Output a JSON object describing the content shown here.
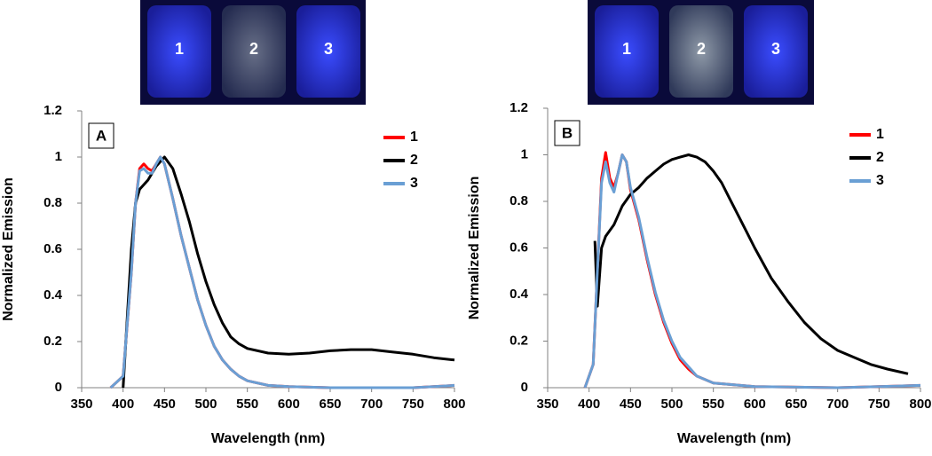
{
  "chart_data": [
    {
      "type": "line",
      "panel_label": "A",
      "inset_labels": [
        "1",
        "2",
        "3"
      ],
      "x_label": "Wavelength (nm)",
      "y_label": "Normalized Emission",
      "xlim": [
        350,
        800
      ],
      "ylim": [
        0,
        1.2
      ],
      "xticks": [
        350,
        400,
        450,
        500,
        550,
        600,
        650,
        700,
        750,
        800
      ],
      "yticks": [
        0,
        0.2,
        0.4,
        0.6,
        0.8,
        1,
        1.2
      ],
      "legend": "upper right",
      "grid": false,
      "series": [
        {
          "name": "1",
          "color": "#ff0000",
          "x": [
            385,
            400,
            410,
            415,
            420,
            425,
            430,
            435,
            440,
            445,
            450,
            460,
            470,
            480,
            490,
            500,
            510,
            520,
            530,
            540,
            550,
            575,
            600,
            650,
            700,
            750,
            800
          ],
          "values": [
            0,
            0.05,
            0.5,
            0.8,
            0.95,
            0.97,
            0.95,
            0.94,
            0.97,
            1.0,
            0.97,
            0.82,
            0.66,
            0.52,
            0.38,
            0.27,
            0.18,
            0.12,
            0.08,
            0.05,
            0.03,
            0.01,
            0.005,
            0,
            0,
            0,
            0.01
          ]
        },
        {
          "name": "2",
          "color": "#000000",
          "x": [
            400,
            405,
            410,
            415,
            420,
            430,
            440,
            450,
            460,
            470,
            480,
            490,
            500,
            510,
            520,
            530,
            540,
            550,
            575,
            600,
            625,
            650,
            675,
            700,
            725,
            750,
            775,
            800
          ],
          "values": [
            0,
            0.3,
            0.6,
            0.8,
            0.86,
            0.9,
            0.96,
            1.0,
            0.95,
            0.84,
            0.72,
            0.58,
            0.46,
            0.36,
            0.28,
            0.22,
            0.19,
            0.17,
            0.15,
            0.145,
            0.15,
            0.16,
            0.165,
            0.165,
            0.155,
            0.145,
            0.13,
            0.12
          ]
        },
        {
          "name": "3",
          "color": "#6a9fd4",
          "x": [
            385,
            400,
            410,
            415,
            420,
            425,
            430,
            435,
            440,
            445,
            450,
            460,
            470,
            480,
            490,
            500,
            510,
            520,
            530,
            540,
            550,
            575,
            600,
            650,
            700,
            750,
            800
          ],
          "values": [
            0,
            0.05,
            0.5,
            0.8,
            0.94,
            0.95,
            0.93,
            0.93,
            0.97,
            1.0,
            0.97,
            0.82,
            0.66,
            0.52,
            0.38,
            0.27,
            0.18,
            0.12,
            0.08,
            0.05,
            0.03,
            0.01,
            0.005,
            0,
            0,
            0,
            0.01
          ]
        }
      ]
    },
    {
      "type": "line",
      "panel_label": "B",
      "inset_labels": [
        "1",
        "2",
        "3"
      ],
      "x_label": "Wavelength (nm)",
      "y_label": "Normalized Emission",
      "xlim": [
        350,
        800
      ],
      "ylim": [
        0,
        1.2
      ],
      "xticks": [
        350,
        400,
        450,
        500,
        550,
        600,
        650,
        700,
        750,
        800
      ],
      "yticks": [
        0,
        0.2,
        0.4,
        0.6,
        0.8,
        1,
        1.2
      ],
      "legend": "upper right",
      "grid": false,
      "series": [
        {
          "name": "1",
          "color": "#ff0000",
          "x": [
            395,
            405,
            410,
            415,
            420,
            425,
            430,
            435,
            440,
            445,
            450,
            460,
            470,
            480,
            490,
            500,
            510,
            520,
            530,
            550,
            600,
            700,
            800
          ],
          "values": [
            0,
            0.1,
            0.5,
            0.9,
            1.01,
            0.9,
            0.86,
            0.92,
            1.0,
            0.97,
            0.85,
            0.72,
            0.55,
            0.4,
            0.28,
            0.19,
            0.12,
            0.08,
            0.05,
            0.02,
            0.005,
            0,
            0.01
          ]
        },
        {
          "name": "2",
          "color": "#000000",
          "x": [
            407,
            410,
            415,
            420,
            430,
            440,
            450,
            460,
            470,
            480,
            490,
            500,
            510,
            520,
            530,
            540,
            550,
            560,
            570,
            580,
            590,
            600,
            620,
            640,
            660,
            680,
            700,
            720,
            740,
            760,
            785
          ],
          "values": [
            0.63,
            0.35,
            0.6,
            0.65,
            0.7,
            0.78,
            0.83,
            0.86,
            0.9,
            0.93,
            0.96,
            0.98,
            0.99,
            1.0,
            0.99,
            0.97,
            0.93,
            0.88,
            0.81,
            0.74,
            0.67,
            0.6,
            0.47,
            0.37,
            0.28,
            0.21,
            0.16,
            0.13,
            0.1,
            0.08,
            0.06
          ]
        },
        {
          "name": "3",
          "color": "#6a9fd4",
          "x": [
            395,
            405,
            410,
            415,
            420,
            425,
            430,
            435,
            440,
            445,
            450,
            460,
            470,
            480,
            490,
            500,
            510,
            520,
            530,
            550,
            600,
            700,
            800
          ],
          "values": [
            0,
            0.1,
            0.5,
            0.88,
            0.97,
            0.88,
            0.84,
            0.92,
            1.0,
            0.97,
            0.86,
            0.73,
            0.56,
            0.41,
            0.29,
            0.2,
            0.13,
            0.09,
            0.05,
            0.02,
            0.005,
            0,
            0.01
          ]
        }
      ]
    }
  ]
}
